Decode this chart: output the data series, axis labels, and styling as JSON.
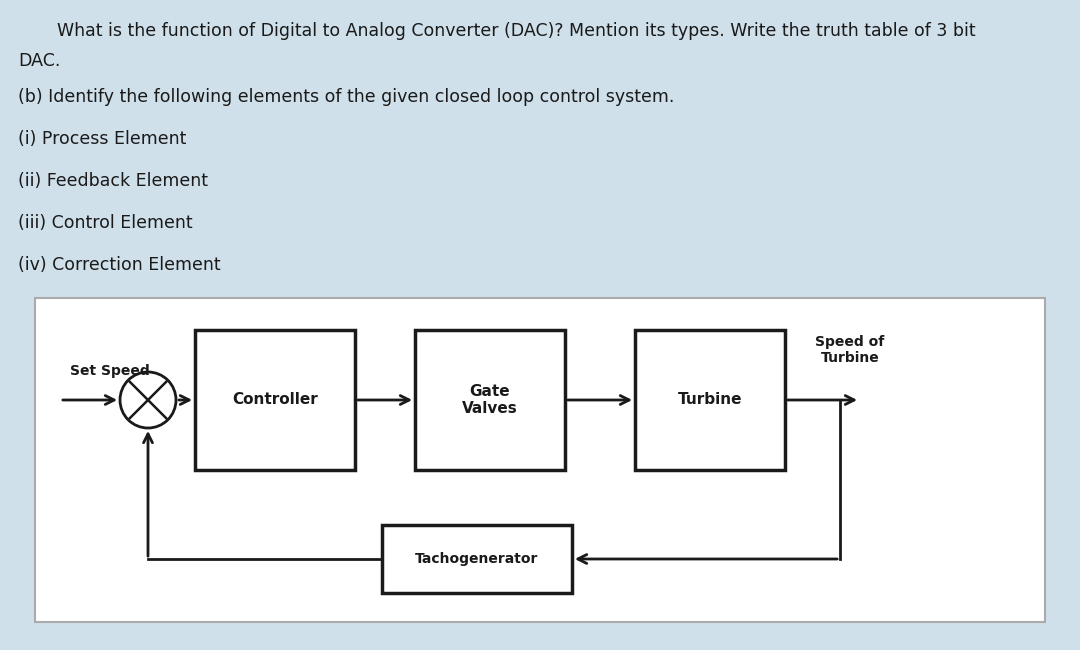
{
  "bg_color": "#cfe0ea",
  "diagram_bg": "#ffffff",
  "text_color": "#1a1a1a",
  "title_line1": "    What is the function of Digital to Analog Converter (DAC)? Mention its types. Write the truth table of 3 bit",
  "title_line2": "DAC.",
  "subtitle": "(b) Identify the following elements of the given closed loop control system.",
  "items": [
    "(i) Process Element",
    "(ii) Feedback Element",
    "(iii) Control Element",
    "(iv) Correction Element"
  ],
  "set_speed_label": "Set Speed",
  "speed_of_turbine_label": "Speed of\nTurbine",
  "block_labels": [
    "Controller",
    "Gate\nValves",
    "Turbine",
    "Tachogenerator"
  ],
  "fig_width": 10.8,
  "fig_height": 6.5
}
